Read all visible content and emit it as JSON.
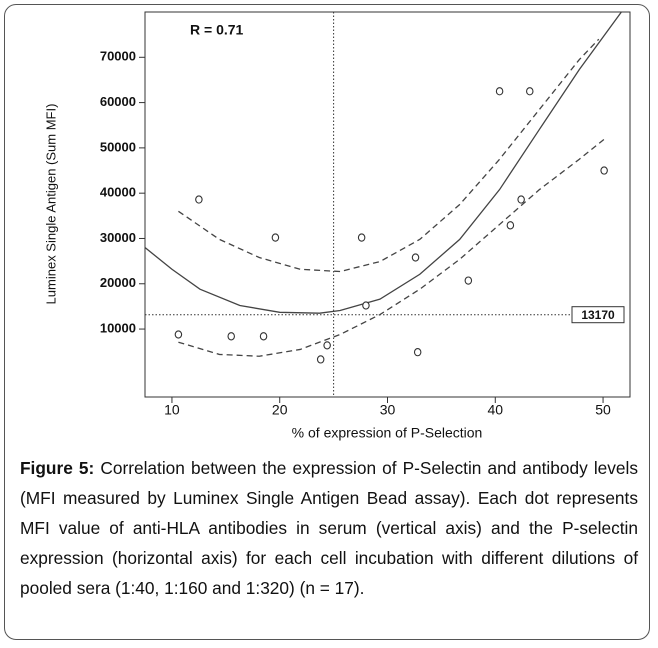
{
  "chart_data": {
    "type": "scatter",
    "annotation": "R = 0.71",
    "xlabel": "% of expression of P-Selection",
    "ylabel": "Luminex Single Antigen (Sum MFI)",
    "xlim": [
      7.5,
      52.5
    ],
    "xticks": [
      10,
      20,
      30,
      40,
      50
    ],
    "ylim": [
      -5000,
      80000
    ],
    "yticks": [
      10000,
      20000,
      30000,
      40000,
      50000,
      60000,
      70000
    ],
    "vline": 25,
    "hline": 13170,
    "x": [
      10.6,
      12.5,
      15.5,
      18.5,
      19.6,
      23.8,
      24.4,
      27.6,
      28.0,
      32.6,
      32.8,
      37.5,
      40.4,
      41.4,
      42.4,
      43.2,
      50.1
    ],
    "values": [
      8800,
      38600,
      8400,
      8400,
      30200,
      3300,
      6400,
      30200,
      15200,
      25800,
      4900,
      20700,
      62500,
      32900,
      38600,
      62500,
      45000
    ],
    "curves": [
      {
        "style": "solid",
        "x": [
          7.5,
          10,
          12.6,
          16.3,
          20,
          23.7,
          25.6,
          29.3,
          33,
          36.7,
          40.4,
          44.1,
          47.8,
          51.7
        ],
        "values": [
          28000,
          23200,
          18800,
          15200,
          13700,
          13500,
          14100,
          16600,
          22100,
          29800,
          40800,
          54100,
          67300,
          80000
        ]
      },
      {
        "style": "dashed",
        "x": [
          10.6,
          14.4,
          18.1,
          21.9,
          25.6,
          29.3,
          33,
          36.7,
          40.4,
          44.1,
          47.8,
          49.6
        ],
        "values": [
          36000,
          29800,
          25800,
          23200,
          22700,
          24900,
          29800,
          37500,
          47500,
          58500,
          69500,
          74000
        ]
      },
      {
        "style": "dashed",
        "x": [
          10.6,
          14.4,
          18.1,
          21.9,
          25.6,
          29.3,
          33,
          36.7,
          40.4,
          44.1,
          47.8,
          50.1
        ],
        "values": [
          7100,
          4400,
          4000,
          5500,
          8800,
          13200,
          18800,
          25400,
          33100,
          40800,
          47500,
          51900
        ]
      }
    ],
    "caption_label": "Figure 5:",
    "caption": "Correlation between the expression of P-Selectin and antibody levels (MFI measured by Luminex Single Antigen Bead assay). Each dot represents MFI value of anti-HLA antibodies in serum (vertical axis) and the P-selectin expression (horizontal axis) for each cell incubation with different dilutions of pooled sera (1:40, 1:160 and 1:320) (n = 17)."
  }
}
